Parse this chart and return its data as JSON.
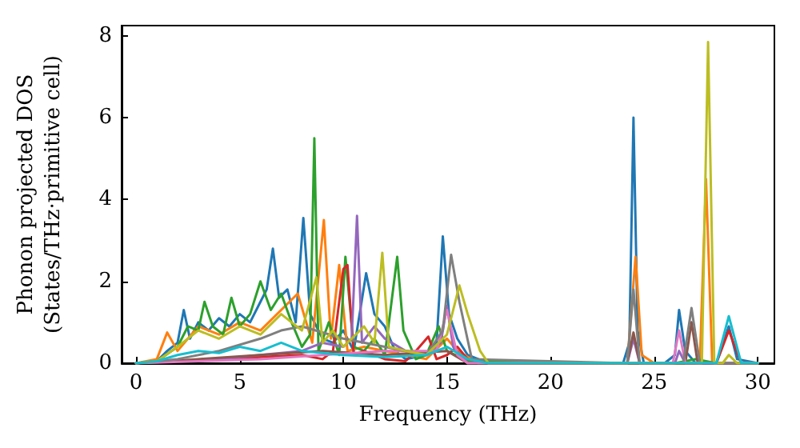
{
  "chart_data": {
    "type": "line",
    "xlabel": "Frequency (THz)",
    "ylabel": "Phonon projected DOS\n(States/THz·primitive cell)",
    "xlim": [
      -0.7,
      30.8
    ],
    "ylim": [
      0,
      8.25
    ],
    "xticks": [
      0,
      5,
      10,
      15,
      20,
      25,
      30
    ],
    "yticks": [
      0,
      2,
      4,
      6,
      8
    ],
    "grid": false,
    "marker": "none",
    "line_style": "solid",
    "series": [
      {
        "color": "#1f77b4",
        "x": [
          0,
          1,
          1.5,
          2,
          2.3,
          2.6,
          3,
          3.5,
          4,
          4.5,
          5,
          5.5,
          6,
          6.3,
          6.6,
          6.9,
          7.3,
          7.7,
          8.07,
          8.4,
          9,
          9.5,
          10,
          10.5,
          11.1,
          11.5,
          12,
          12.5,
          13,
          14,
          14.5,
          14.8,
          15.1,
          15.5,
          16,
          17,
          23.5,
          23.8,
          24,
          24.2,
          24.5,
          25.5,
          26,
          26.2,
          26.5,
          27,
          28,
          28.6,
          29,
          30
        ],
        "values": [
          0,
          0.05,
          0.3,
          0.5,
          1.3,
          0.6,
          1.0,
          0.8,
          1.1,
          0.9,
          1.2,
          1.0,
          1.5,
          1.8,
          2.8,
          1.6,
          1.8,
          1.0,
          3.55,
          1.2,
          0.6,
          0.5,
          0.8,
          0.3,
          2.2,
          1.2,
          0.9,
          0.3,
          0.1,
          0.2,
          0.5,
          3.1,
          1.2,
          0.6,
          0.2,
          0,
          0,
          0.5,
          6.0,
          0.8,
          0,
          0,
          0.2,
          1.3,
          0.3,
          0,
          0,
          0.9,
          0.1,
          0
        ]
      },
      {
        "color": "#ff7f0e",
        "x": [
          0,
          1,
          1.5,
          2,
          3,
          4,
          5,
          6,
          7,
          7.8,
          8.5,
          9.06,
          9.4,
          9.8,
          10.2,
          11,
          12,
          13,
          14,
          15,
          15.5,
          16.5,
          23.7,
          24.1,
          24.4,
          25,
          27.2,
          27.5,
          27.8,
          29,
          30
        ],
        "values": [
          0,
          0.1,
          0.75,
          0.3,
          0.9,
          0.7,
          1.0,
          0.8,
          1.3,
          1.7,
          0.5,
          3.5,
          0.6,
          2.4,
          0.3,
          0.4,
          0.3,
          0.2,
          0.1,
          0.6,
          0.3,
          0,
          0,
          2.6,
          0.2,
          0,
          0,
          4.5,
          0,
          0,
          0
        ]
      },
      {
        "color": "#2ca02c",
        "x": [
          0,
          1,
          2,
          2.5,
          3,
          3.3,
          3.7,
          4.2,
          4.6,
          5,
          5.5,
          6,
          6.5,
          7,
          7.5,
          8,
          8.4,
          8.6,
          8.8,
          9.3,
          9.8,
          10.1,
          10.5,
          11,
          11.5,
          12,
          12.6,
          12.9,
          13.5,
          14,
          14.6,
          15,
          16,
          23,
          26,
          27,
          28,
          30
        ],
        "values": [
          0,
          0.05,
          0.4,
          0.9,
          0.8,
          1.5,
          0.9,
          0.7,
          1.6,
          0.9,
          1.2,
          2.0,
          1.3,
          1.7,
          1.0,
          0.4,
          0.7,
          5.5,
          0.3,
          1.0,
          0.2,
          2.6,
          0.4,
          0.3,
          0.6,
          0.2,
          2.6,
          0.8,
          0.1,
          0.2,
          0.9,
          0.3,
          0.05,
          0,
          0,
          0.1,
          0,
          0
        ]
      },
      {
        "color": "#d62728",
        "x": [
          4,
          6,
          8,
          9,
          9.5,
          10,
          10.2,
          10.5,
          11,
          12,
          13,
          13.5,
          14.1,
          14.5,
          15,
          15.5,
          16,
          17,
          28,
          28.6,
          29.2,
          30
        ],
        "values": [
          0.1,
          0.15,
          0.2,
          0.1,
          0.3,
          2.3,
          2.4,
          0.2,
          0.3,
          0.1,
          0.05,
          0.3,
          0.65,
          0.1,
          0.2,
          0.4,
          0.1,
          0,
          0,
          0.8,
          0,
          0
        ]
      },
      {
        "color": "#9467bd",
        "x": [
          0,
          2,
          4,
          6,
          8,
          9,
          10,
          10.4,
          10.66,
          10.9,
          11.5,
          12,
          13,
          14,
          14.7,
          15,
          15.3,
          16,
          23.7,
          24,
          24.3,
          26,
          26.2,
          26.5,
          30
        ],
        "values": [
          0,
          0.05,
          0.1,
          0.2,
          0.3,
          0.5,
          0.4,
          0.6,
          3.6,
          0.5,
          0.9,
          0.6,
          0.3,
          0.2,
          0.5,
          1.4,
          0.4,
          0,
          0,
          0.6,
          0,
          0,
          0.3,
          0,
          0
        ]
      },
      {
        "color": "#8c564b",
        "x": [
          0,
          3,
          6,
          9,
          12,
          15,
          16,
          23.7,
          24,
          24.3,
          26.5,
          26.8,
          27.1,
          30
        ],
        "values": [
          0,
          0.1,
          0.2,
          0.3,
          0.2,
          0.3,
          0,
          0,
          0.75,
          0,
          0,
          1.0,
          0,
          0
        ]
      },
      {
        "color": "#e377c2",
        "x": [
          0,
          3,
          6,
          9,
          12,
          14.5,
          15,
          15.5,
          16,
          25.9,
          26.2,
          26.5,
          30
        ],
        "values": [
          0,
          0.05,
          0.1,
          0.2,
          0.3,
          0.3,
          1.3,
          0.2,
          0,
          0,
          0.8,
          0,
          0
        ]
      },
      {
        "color": "#7f7f7f",
        "x": [
          0,
          2,
          4,
          6,
          7,
          8,
          10,
          12,
          13,
          14,
          14.8,
          15.2,
          15.6,
          16.2,
          23.7,
          24,
          24.3,
          26.4,
          26.8,
          27.2,
          30
        ],
        "values": [
          0,
          0.1,
          0.3,
          0.6,
          0.8,
          0.9,
          0.6,
          0.4,
          0.3,
          0.2,
          0.8,
          2.65,
          1.5,
          0.1,
          0,
          1.8,
          0,
          0,
          1.35,
          0,
          0
        ]
      },
      {
        "color": "#bcbd22",
        "x": [
          0,
          1,
          2,
          3,
          4,
          5,
          6,
          7,
          8,
          8.7,
          9,
          9.5,
          10,
          11,
          11.5,
          11.88,
          12.2,
          13,
          14,
          15,
          15.6,
          16,
          16.6,
          17,
          27.3,
          27.6,
          27.9,
          28.3,
          28.6,
          29,
          30
        ],
        "values": [
          0,
          0.05,
          0.4,
          0.8,
          0.6,
          0.9,
          0.7,
          1.2,
          0.8,
          2.1,
          0.5,
          0.8,
          0.4,
          0.9,
          0.5,
          2.7,
          0.4,
          0.3,
          0.2,
          0.7,
          1.9,
          1.2,
          0.3,
          0,
          0,
          7.85,
          0,
          0,
          0.2,
          0,
          0
        ]
      },
      {
        "color": "#17becf",
        "x": [
          0,
          1,
          2,
          3,
          4,
          5,
          6,
          7,
          8,
          10,
          12,
          14,
          15,
          16,
          17,
          28,
          28.6,
          29.2,
          30
        ],
        "values": [
          0,
          0.05,
          0.2,
          0.3,
          0.25,
          0.4,
          0.3,
          0.5,
          0.3,
          0.2,
          0.15,
          0.2,
          0.4,
          0.1,
          0,
          0,
          1.15,
          0,
          0
        ]
      }
    ]
  }
}
